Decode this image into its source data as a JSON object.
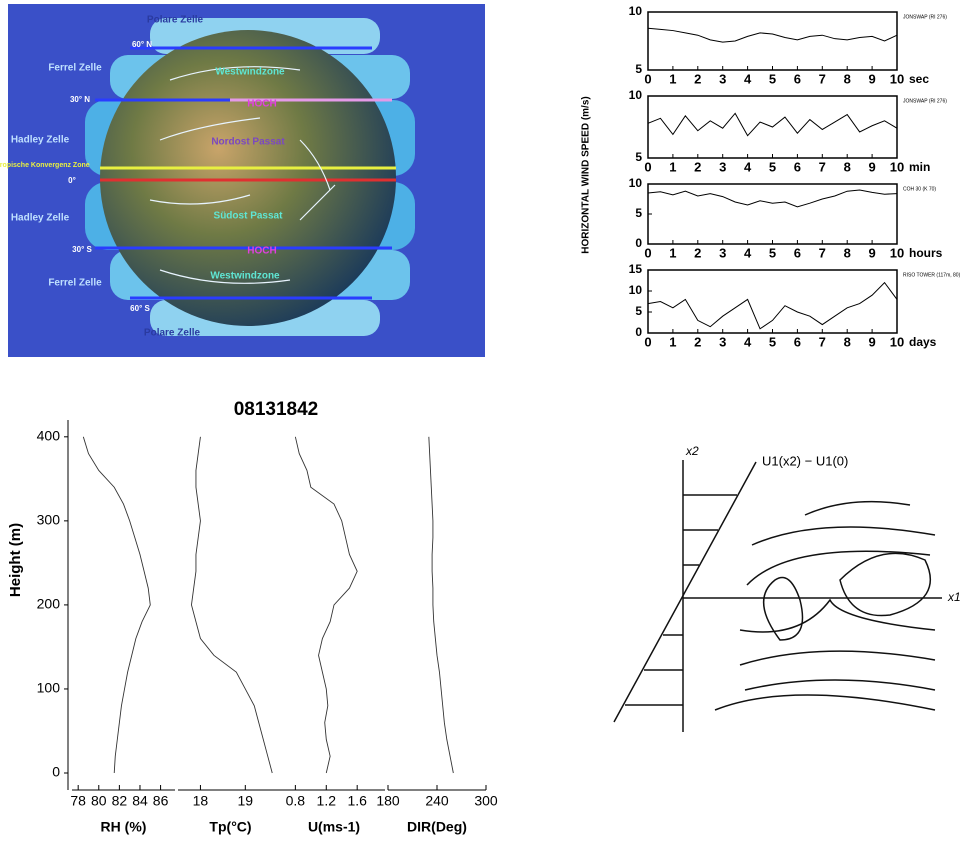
{
  "globe": {
    "labels": [
      "Polare Zelle",
      "60° N",
      "Ferrel Zelle",
      "Westwindzone",
      "30° N",
      "HOCH",
      "Hadley Zelle",
      "Nordost Passat",
      "Innertropische Konvergenz Zone",
      "0°",
      "Hadley Zelle",
      "Südost Passat",
      "30° S",
      "HOCH",
      "Westwindzone",
      "Ferrel Zelle",
      "60° S",
      "Polare Zelle"
    ]
  },
  "chart_data": [
    {
      "type": "multi-line",
      "ylabel": "HORIZONTAL WIND SPEED (m/s)",
      "x": [
        0,
        0.5,
        1,
        1.5,
        2,
        2.5,
        3,
        3.5,
        4,
        4.5,
        5,
        5.5,
        6,
        6.5,
        7,
        7.5,
        8,
        8.5,
        9,
        9.5,
        10
      ],
      "xlim": [
        0,
        10
      ],
      "xticks": [
        0,
        1,
        2,
        3,
        4,
        5,
        6,
        7,
        8,
        9,
        10
      ],
      "panels": [
        {
          "x_unit": "sec",
          "note": "JONSWAP (RI 276)",
          "ylim": [
            5,
            10
          ],
          "yticks": [
            5,
            10
          ],
          "values": [
            8.6,
            8.5,
            8.4,
            8.2,
            8.0,
            7.6,
            7.4,
            7.5,
            7.9,
            8.2,
            8.1,
            7.8,
            7.6,
            7.9,
            8.0,
            7.7,
            7.6,
            7.8,
            7.9,
            7.5,
            8.0
          ]
        },
        {
          "x_unit": "min",
          "note": "JONSWAP (RI 276)",
          "ylim": [
            5,
            10
          ],
          "yticks": [
            5,
            10
          ],
          "values": [
            7.8,
            8.2,
            6.9,
            8.4,
            7.2,
            8.0,
            7.4,
            8.6,
            6.8,
            7.9,
            7.5,
            8.3,
            7.0,
            8.1,
            7.3,
            7.9,
            8.5,
            7.1,
            7.6,
            8.0,
            7.4
          ]
        },
        {
          "x_unit": "hours",
          "note": "COH 30 (K 70)",
          "ylim": [
            0,
            10
          ],
          "yticks": [
            0,
            5,
            10
          ],
          "values": [
            8.5,
            8.7,
            8.2,
            8.8,
            8.0,
            8.4,
            7.9,
            7.0,
            6.5,
            7.2,
            6.8,
            7.0,
            6.2,
            6.8,
            7.5,
            8.0,
            8.8,
            9.0,
            8.6,
            8.3,
            8.4
          ]
        },
        {
          "x_unit": "days",
          "note": "RISO TOWER (117m, 80)",
          "ylim": [
            0,
            15
          ],
          "yticks": [
            0,
            5,
            10,
            15
          ],
          "values": [
            7,
            7.5,
            6,
            8,
            3,
            1.5,
            4,
            6,
            8,
            1,
            3,
            6.5,
            5,
            4,
            2,
            4,
            6,
            7,
            9,
            12,
            8
          ]
        }
      ]
    },
    {
      "type": "profile",
      "title": "08131842",
      "ylabel": "Height (m)",
      "heights": [
        0,
        20,
        40,
        60,
        80,
        100,
        120,
        140,
        160,
        180,
        200,
        220,
        240,
        260,
        280,
        300,
        320,
        340,
        360,
        380,
        400
      ],
      "ylim": [
        0,
        420
      ],
      "yticks": [
        0,
        100,
        200,
        300,
        400
      ],
      "panels": [
        {
          "xlabel": "RH (%)",
          "xlim": [
            77.4,
            87.4
          ],
          "xticks": [
            78,
            80,
            82,
            84,
            86
          ],
          "values": [
            81.5,
            81.6,
            81.8,
            82.0,
            82.2,
            82.5,
            82.8,
            83.2,
            83.6,
            84.2,
            85.0,
            84.8,
            84.4,
            84.0,
            83.5,
            83.0,
            82.4,
            81.5,
            80.0,
            79.0,
            78.5
          ]
        },
        {
          "xlabel": "Tp(°C)",
          "xlim": [
            17.5,
            19.84
          ],
          "xticks": [
            18,
            19
          ],
          "values": [
            19.6,
            19.5,
            19.4,
            19.3,
            19.2,
            19.0,
            18.8,
            18.3,
            18.0,
            17.9,
            17.8,
            17.85,
            17.9,
            17.9,
            17.95,
            18.0,
            17.95,
            17.9,
            17.9,
            17.95,
            18.0
          ]
        },
        {
          "xlabel": "U(ms-1)",
          "xlim": [
            0.64,
            1.96
          ],
          "xticks": [
            0.8,
            1.2,
            1.6
          ],
          "values": [
            1.2,
            1.25,
            1.2,
            1.18,
            1.22,
            1.2,
            1.15,
            1.1,
            1.15,
            1.25,
            1.3,
            1.5,
            1.6,
            1.5,
            1.45,
            1.4,
            1.3,
            1.0,
            0.95,
            0.85,
            0.8
          ]
        },
        {
          "xlabel": "DIR(Deg)",
          "xlim": [
            180,
            300
          ],
          "xticks": [
            180,
            240,
            300
          ],
          "values": [
            260,
            256,
            252,
            249,
            247,
            245,
            243,
            240,
            238,
            236,
            235,
            235,
            234,
            234,
            235,
            235,
            234,
            233,
            232,
            231,
            230
          ]
        }
      ]
    }
  ],
  "shear_diagram": {
    "axis_y": "x2",
    "axis_x": "x1",
    "profile_label": "U1(x2) − U1(0)"
  }
}
